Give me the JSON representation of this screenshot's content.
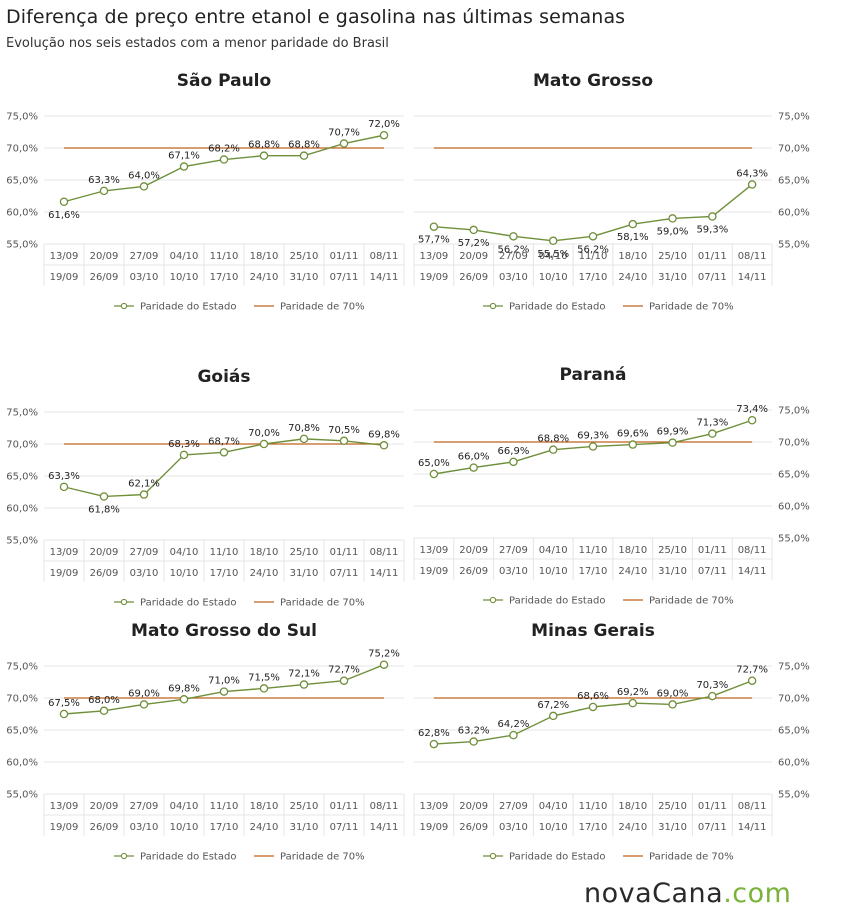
{
  "header": {
    "title": "Diferença de preço entre etanol e gasolina nas últimas semanas",
    "subtitle": "Evolução nos seis estados com a menor paridade do Brasil"
  },
  "logo": {
    "main": "novaCana",
    "suffix": ".com"
  },
  "colors": {
    "series": "#6f8f3a",
    "reference": "#c0621e",
    "grid": "#e4e4e4",
    "axis_text": "#555555"
  },
  "legend_labels": {
    "series": "Paridade do Estado",
    "reference": "Paridade de 70%"
  },
  "chart_data": [
    {
      "type": "line",
      "title": "São Paulo",
      "y_axis_side": "left",
      "ylim": [
        55,
        75
      ],
      "y_ticks": [
        "75,0%",
        "70,0%",
        "65,0%",
        "60,0%",
        "55,0%"
      ],
      "categories_top": [
        "13/09",
        "20/09",
        "27/09",
        "04/10",
        "11/10",
        "18/10",
        "25/10",
        "01/11",
        "08/11"
      ],
      "categories_bottom": [
        "19/09",
        "26/09",
        "03/10",
        "10/10",
        "17/10",
        "24/10",
        "31/10",
        "07/11",
        "14/11"
      ],
      "series": [
        {
          "name": "Paridade do Estado",
          "values": [
            61.6,
            63.3,
            64.0,
            67.1,
            68.2,
            68.8,
            68.8,
            70.7,
            72.0
          ],
          "labels": [
            "61,6%",
            "63,3%",
            "64,0%",
            "67,1%",
            "68,2%",
            "68,8%",
            "68,8%",
            "70,7%",
            "72,0%"
          ]
        },
        {
          "name": "Paridade de 70%",
          "values": [
            70,
            70,
            70,
            70,
            70,
            70,
            70,
            70,
            70
          ]
        }
      ],
      "legend": "bottom",
      "grid": true
    },
    {
      "type": "line",
      "title": "Mato Grosso",
      "y_axis_side": "right",
      "ylim": [
        55,
        75
      ],
      "y_ticks": [
        "75,0%",
        "70,0%",
        "65,0%",
        "60,0%",
        "55,0%"
      ],
      "categories_top": [
        "13/09",
        "20/09",
        "27/09",
        "04/10",
        "11/10",
        "18/10",
        "25/10",
        "01/11",
        "08/11"
      ],
      "categories_bottom": [
        "19/09",
        "26/09",
        "03/10",
        "10/10",
        "17/10",
        "24/10",
        "31/10",
        "07/11",
        "14/11"
      ],
      "series": [
        {
          "name": "Paridade do Estado",
          "values": [
            57.7,
            57.2,
            56.2,
            55.5,
            56.2,
            58.1,
            59.0,
            59.3,
            64.3
          ],
          "labels": [
            "57,7%",
            "57,2%",
            "56,2%",
            "55,5%",
            "56,2%",
            "58,1%",
            "59,0%",
            "59,3%",
            "64,3%"
          ]
        },
        {
          "name": "Paridade de 70%",
          "values": [
            70,
            70,
            70,
            70,
            70,
            70,
            70,
            70,
            70
          ]
        }
      ],
      "legend": "bottom",
      "grid": true
    },
    {
      "type": "line",
      "title": "Goiás",
      "y_axis_side": "left",
      "ylim": [
        55,
        75
      ],
      "y_ticks": [
        "75,0%",
        "70,0%",
        "65,0%",
        "60,0%",
        "55,0%"
      ],
      "categories_top": [
        "13/09",
        "20/09",
        "27/09",
        "04/10",
        "11/10",
        "18/10",
        "25/10",
        "01/11",
        "08/11"
      ],
      "categories_bottom": [
        "19/09",
        "26/09",
        "03/10",
        "10/10",
        "17/10",
        "24/10",
        "31/10",
        "07/11",
        "14/11"
      ],
      "series": [
        {
          "name": "Paridade do Estado",
          "values": [
            63.3,
            61.8,
            62.1,
            68.3,
            68.7,
            70.0,
            70.8,
            70.5,
            69.8
          ],
          "labels": [
            "63,3%",
            "61,8%",
            "62,1%",
            "68,3%",
            "68,7%",
            "70,0%",
            "70,8%",
            "70,5%",
            "69,8%"
          ]
        },
        {
          "name": "Paridade de 70%",
          "values": [
            70,
            70,
            70,
            70,
            70,
            70,
            70,
            70,
            70
          ]
        }
      ],
      "legend": "bottom",
      "grid": true
    },
    {
      "type": "line",
      "title": "Paraná",
      "y_axis_side": "right",
      "ylim": [
        55,
        75
      ],
      "y_ticks": [
        "75,0%",
        "70,0%",
        "65,0%",
        "60,0%",
        "55,0%"
      ],
      "categories_top": [
        "13/09",
        "20/09",
        "27/09",
        "04/10",
        "11/10",
        "18/10",
        "25/10",
        "01/11",
        "08/11"
      ],
      "categories_bottom": [
        "19/09",
        "26/09",
        "03/10",
        "10/10",
        "17/10",
        "24/10",
        "31/10",
        "07/11",
        "14/11"
      ],
      "series": [
        {
          "name": "Paridade do Estado",
          "values": [
            65.0,
            66.0,
            66.9,
            68.8,
            69.3,
            69.6,
            69.9,
            71.3,
            73.4
          ],
          "labels": [
            "65,0%",
            "66,0%",
            "66,9%",
            "68,8%",
            "69,3%",
            "69,6%",
            "69,9%",
            "71,3%",
            "73,4%"
          ]
        },
        {
          "name": "Paridade de 70%",
          "values": [
            70,
            70,
            70,
            70,
            70,
            70,
            70,
            70,
            70
          ]
        }
      ],
      "legend": "bottom",
      "grid": true
    },
    {
      "type": "line",
      "title": "Mato Grosso do Sul",
      "y_axis_side": "left",
      "ylim": [
        55,
        75
      ],
      "y_ticks": [
        "75,0%",
        "70,0%",
        "65,0%",
        "60,0%",
        "55,0%"
      ],
      "categories_top": [
        "13/09",
        "20/09",
        "27/09",
        "04/10",
        "11/10",
        "18/10",
        "25/10",
        "01/11",
        "08/11"
      ],
      "categories_bottom": [
        "19/09",
        "26/09",
        "03/10",
        "10/10",
        "17/10",
        "24/10",
        "31/10",
        "07/11",
        "14/11"
      ],
      "series": [
        {
          "name": "Paridade do Estado",
          "values": [
            67.5,
            68.0,
            69.0,
            69.8,
            71.0,
            71.5,
            72.1,
            72.7,
            75.2
          ],
          "labels": [
            "67,5%",
            "68,0%",
            "69,0%",
            "69,8%",
            "71,0%",
            "71,5%",
            "72,1%",
            "72,7%",
            "75,2%"
          ]
        },
        {
          "name": "Paridade de 70%",
          "values": [
            70,
            70,
            70,
            70,
            70,
            70,
            70,
            70,
            70
          ]
        }
      ],
      "legend": "bottom",
      "grid": true
    },
    {
      "type": "line",
      "title": "Minas Gerais",
      "y_axis_side": "right",
      "ylim": [
        55,
        75
      ],
      "y_ticks": [
        "75,0%",
        "70,0%",
        "65,0%",
        "60,0%",
        "55,0%"
      ],
      "categories_top": [
        "13/09",
        "20/09",
        "27/09",
        "04/10",
        "11/10",
        "18/10",
        "25/10",
        "01/11",
        "08/11"
      ],
      "categories_bottom": [
        "19/09",
        "26/09",
        "03/10",
        "10/10",
        "17/10",
        "24/10",
        "31/10",
        "07/11",
        "14/11"
      ],
      "series": [
        {
          "name": "Paridade do Estado",
          "values": [
            62.8,
            63.2,
            64.2,
            67.2,
            68.6,
            69.2,
            69.0,
            70.3,
            72.7
          ],
          "labels": [
            "62,8%",
            "63,2%",
            "64,2%",
            "67,2%",
            "68,6%",
            "69,2%",
            "69,0%",
            "70,3%",
            "72,7%"
          ]
        },
        {
          "name": "Paridade de 70%",
          "values": [
            70,
            70,
            70,
            70,
            70,
            70,
            70,
            70,
            70
          ]
        }
      ],
      "legend": "bottom",
      "grid": true
    }
  ]
}
